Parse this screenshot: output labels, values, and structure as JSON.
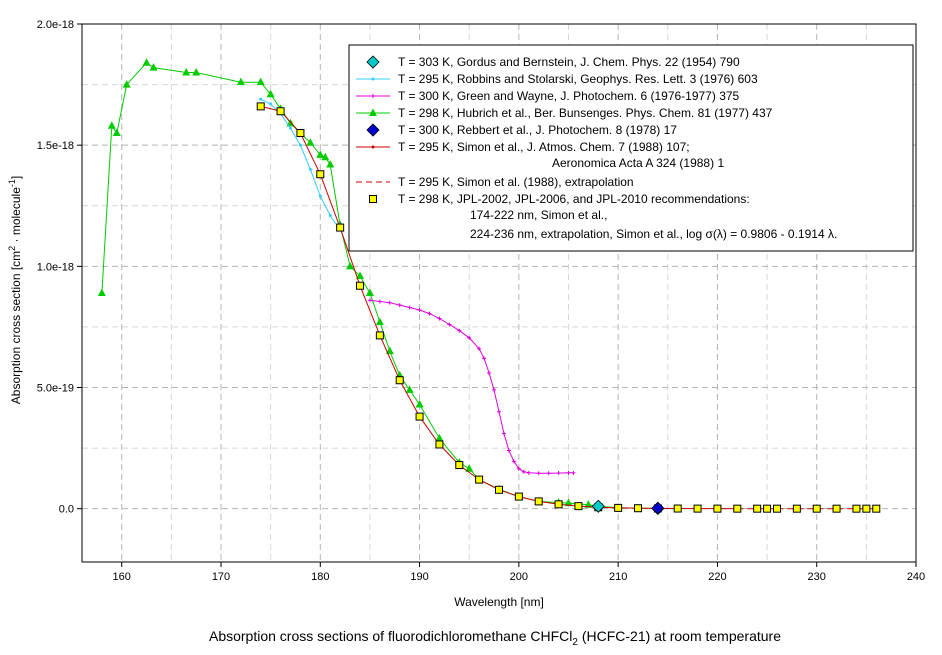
{
  "chart_data": {
    "type": "line",
    "title": "Absorption cross sections of fluorodichloromethane CHFCl",
    "title_subscript": "2",
    "title_suffix": " (HCFC-21) at room temperature",
    "xlabel": "Wavelength [nm]",
    "ylabel_parts": [
      "Absorption cross section [cm",
      "2",
      " · molecule",
      "-1",
      "]"
    ],
    "xlim": [
      156,
      240
    ],
    "ylim": [
      -2.2e-19,
      2e-18
    ],
    "x_ticks": [
      160,
      170,
      180,
      190,
      200,
      210,
      220,
      230,
      240
    ],
    "x_tick_labels": [
      "160",
      "170",
      "180",
      "190",
      "200",
      "210",
      "220",
      "230",
      "240"
    ],
    "y_ticks": [
      0,
      5e-19,
      1e-18,
      1.5e-18,
      2e-18
    ],
    "y_tick_labels": [
      "0.0",
      "5.0e-19",
      "1.0e-18",
      "1.5e-18",
      "2.0e-18"
    ],
    "grid": true,
    "legend_position": "top-right",
    "series": [
      {
        "name": "T = 303 K, Gordus and Bernstein, J. Chem. Phys. 22 (1954) 790",
        "color": "#00cccc",
        "marker": "diamond",
        "line": false,
        "x": [
          208,
          214
        ],
        "y": [
          1e-20,
          1e-21
        ]
      },
      {
        "name": "T = 295 K, Robbins and Stolarski, Geophys. Res. Lett. 3 (1976) 603",
        "color": "#33ccff",
        "marker": "small-dot",
        "line": true,
        "x": [
          174,
          175,
          176,
          177,
          178,
          179,
          180,
          181,
          182
        ],
        "y": [
          1.69e-18,
          1.67e-18,
          1.63e-18,
          1.57e-18,
          1.5e-18,
          1.4e-18,
          1.29e-18,
          1.21e-18,
          1.15e-18
        ]
      },
      {
        "name": "T = 300 K, Green and Wayne,  J. Photochem. 6 (1976-1977) 375",
        "color": "#dd00dd",
        "marker": "plus",
        "line": true,
        "x": [
          185,
          186,
          187,
          188,
          189,
          190,
          191,
          192,
          193,
          194,
          195,
          196,
          196.5,
          197,
          197.5,
          198,
          198.5,
          199,
          199.5,
          200,
          200.5,
          201,
          202,
          203,
          204,
          205,
          205.5
        ],
        "y": [
          8.6e-19,
          8.55e-19,
          8.5e-19,
          8.4e-19,
          8.3e-19,
          8.2e-19,
          8.05e-19,
          7.85e-19,
          7.6e-19,
          7.35e-19,
          7.05e-19,
          6.6e-19,
          6.2e-19,
          5.6e-19,
          4.9e-19,
          4e-19,
          3.1e-19,
          2.4e-19,
          1.95e-19,
          1.65e-19,
          1.52e-19,
          1.48e-19,
          1.46e-19,
          1.46e-19,
          1.47e-19,
          1.48e-19,
          1.48e-19
        ]
      },
      {
        "name": "T = 298 K, Hubrich et al., Ber. Bunsenges. Phys. Chem. 81 (1977) 437",
        "color": "#00cc00",
        "marker": "triangle",
        "line": true,
        "x": [
          158,
          159,
          159.5,
          160.5,
          162.5,
          163.2,
          166.5,
          167.5,
          172,
          174,
          175,
          176,
          177,
          178,
          179,
          180,
          180.5,
          181,
          182,
          183,
          184,
          185,
          186,
          187,
          188,
          189,
          190,
          192,
          194,
          195,
          196,
          198,
          200,
          202,
          204,
          205,
          207,
          208,
          210,
          212,
          214,
          216
        ],
        "y": [
          8.9e-19,
          1.58e-18,
          1.55e-18,
          1.75e-18,
          1.84e-18,
          1.82e-18,
          1.8e-18,
          1.8e-18,
          1.76e-18,
          1.76e-18,
          1.71e-18,
          1.65e-18,
          1.59e-18,
          1.55e-18,
          1.51e-18,
          1.46e-18,
          1.45e-18,
          1.42e-18,
          1.17e-18,
          1e-18,
          9.6e-19,
          8.9e-19,
          7.7e-19,
          6.5e-19,
          5.5e-19,
          4.9e-19,
          4.3e-19,
          2.9e-19,
          1.9e-19,
          1.65e-19,
          1.2e-19,
          8e-20,
          5e-20,
          3e-20,
          2.5e-20,
          2.3e-20,
          1.6e-20,
          1e-20,
          4e-21,
          2e-21,
          1e-21,
          0
        ]
      },
      {
        "name": "T = 300 K, Rebbert et al., J. Photochem. 8 (1978) 17",
        "color": "#0000cc",
        "marker": "diamond",
        "line": false,
        "x": [
          214
        ],
        "y": [
          2e-21
        ]
      },
      {
        "name": "T = 295 K, Simon et al., J. Atmos. Chem. 7 (1988) 107;",
        "name_line2": "Aeronomica Acta A 324 (1988) 1",
        "color": "#cc0000",
        "marker": "small-dot",
        "line": true,
        "x": [
          174,
          176,
          178,
          180,
          182,
          184,
          186,
          188,
          190,
          192,
          194,
          196,
          198,
          200,
          202,
          204,
          206,
          208,
          210,
          212,
          214,
          216,
          218,
          220,
          222
        ],
        "y": [
          1.66e-18,
          1.64e-18,
          1.55e-18,
          1.38e-18,
          1.16e-18,
          9.2e-19,
          7.15e-19,
          5.3e-19,
          3.8e-19,
          2.65e-19,
          1.8e-19,
          1.2e-19,
          7.8e-20,
          5e-20,
          3e-20,
          1.8e-20,
          1.05e-20,
          6e-21,
          3.3e-21,
          1.9e-21,
          1e-21,
          6e-22,
          3e-22,
          1.7e-22,
          9e-23
        ]
      },
      {
        "name": "T = 295 K, Simon et al. (1988), extrapolation",
        "color": "#cc0000",
        "marker": "none",
        "line": true,
        "dashed": true,
        "x": [
          222,
          224,
          226,
          228,
          230,
          232,
          234,
          236
        ],
        "y": [
          9e-23,
          5e-23,
          2.9e-23,
          1.7e-23,
          9.5e-24,
          5.5e-24,
          3.1e-24,
          1.8e-24
        ]
      },
      {
        "name": "T = 298 K, JPL-2002, JPL-2006, and JPL-2010 recommendations:",
        "name_line2": "174-222 nm, Simon et al.,",
        "name_line3": "224-236 nm, extrapolation, Simon et al., log σ(λ) = 0.9806 - 0.1914 λ.",
        "color": "#ffff00",
        "edge": "#000000",
        "marker": "square",
        "line": false,
        "x": [
          174,
          176,
          178,
          180,
          182,
          184,
          186,
          188,
          190,
          192,
          194,
          196,
          198,
          200,
          202,
          204,
          206,
          208,
          210,
          212,
          214,
          216,
          218,
          220,
          222,
          224,
          225,
          226,
          228,
          230,
          232,
          234,
          235,
          236
        ],
        "y": [
          1.66e-18,
          1.64e-18,
          1.55e-18,
          1.38e-18,
          1.16e-18,
          9.2e-19,
          7.15e-19,
          5.3e-19,
          3.8e-19,
          2.65e-19,
          1.8e-19,
          1.2e-19,
          7.8e-20,
          5e-20,
          3e-20,
          1.8e-20,
          1.05e-20,
          6e-21,
          3.3e-21,
          1.9e-21,
          1e-21,
          6e-22,
          3e-22,
          1.7e-22,
          9e-23,
          5e-23,
          3.8e-23,
          2.9e-23,
          1.7e-23,
          9.5e-24,
          5.5e-24,
          3.1e-24,
          2.3e-24,
          1.8e-24
        ]
      }
    ]
  }
}
